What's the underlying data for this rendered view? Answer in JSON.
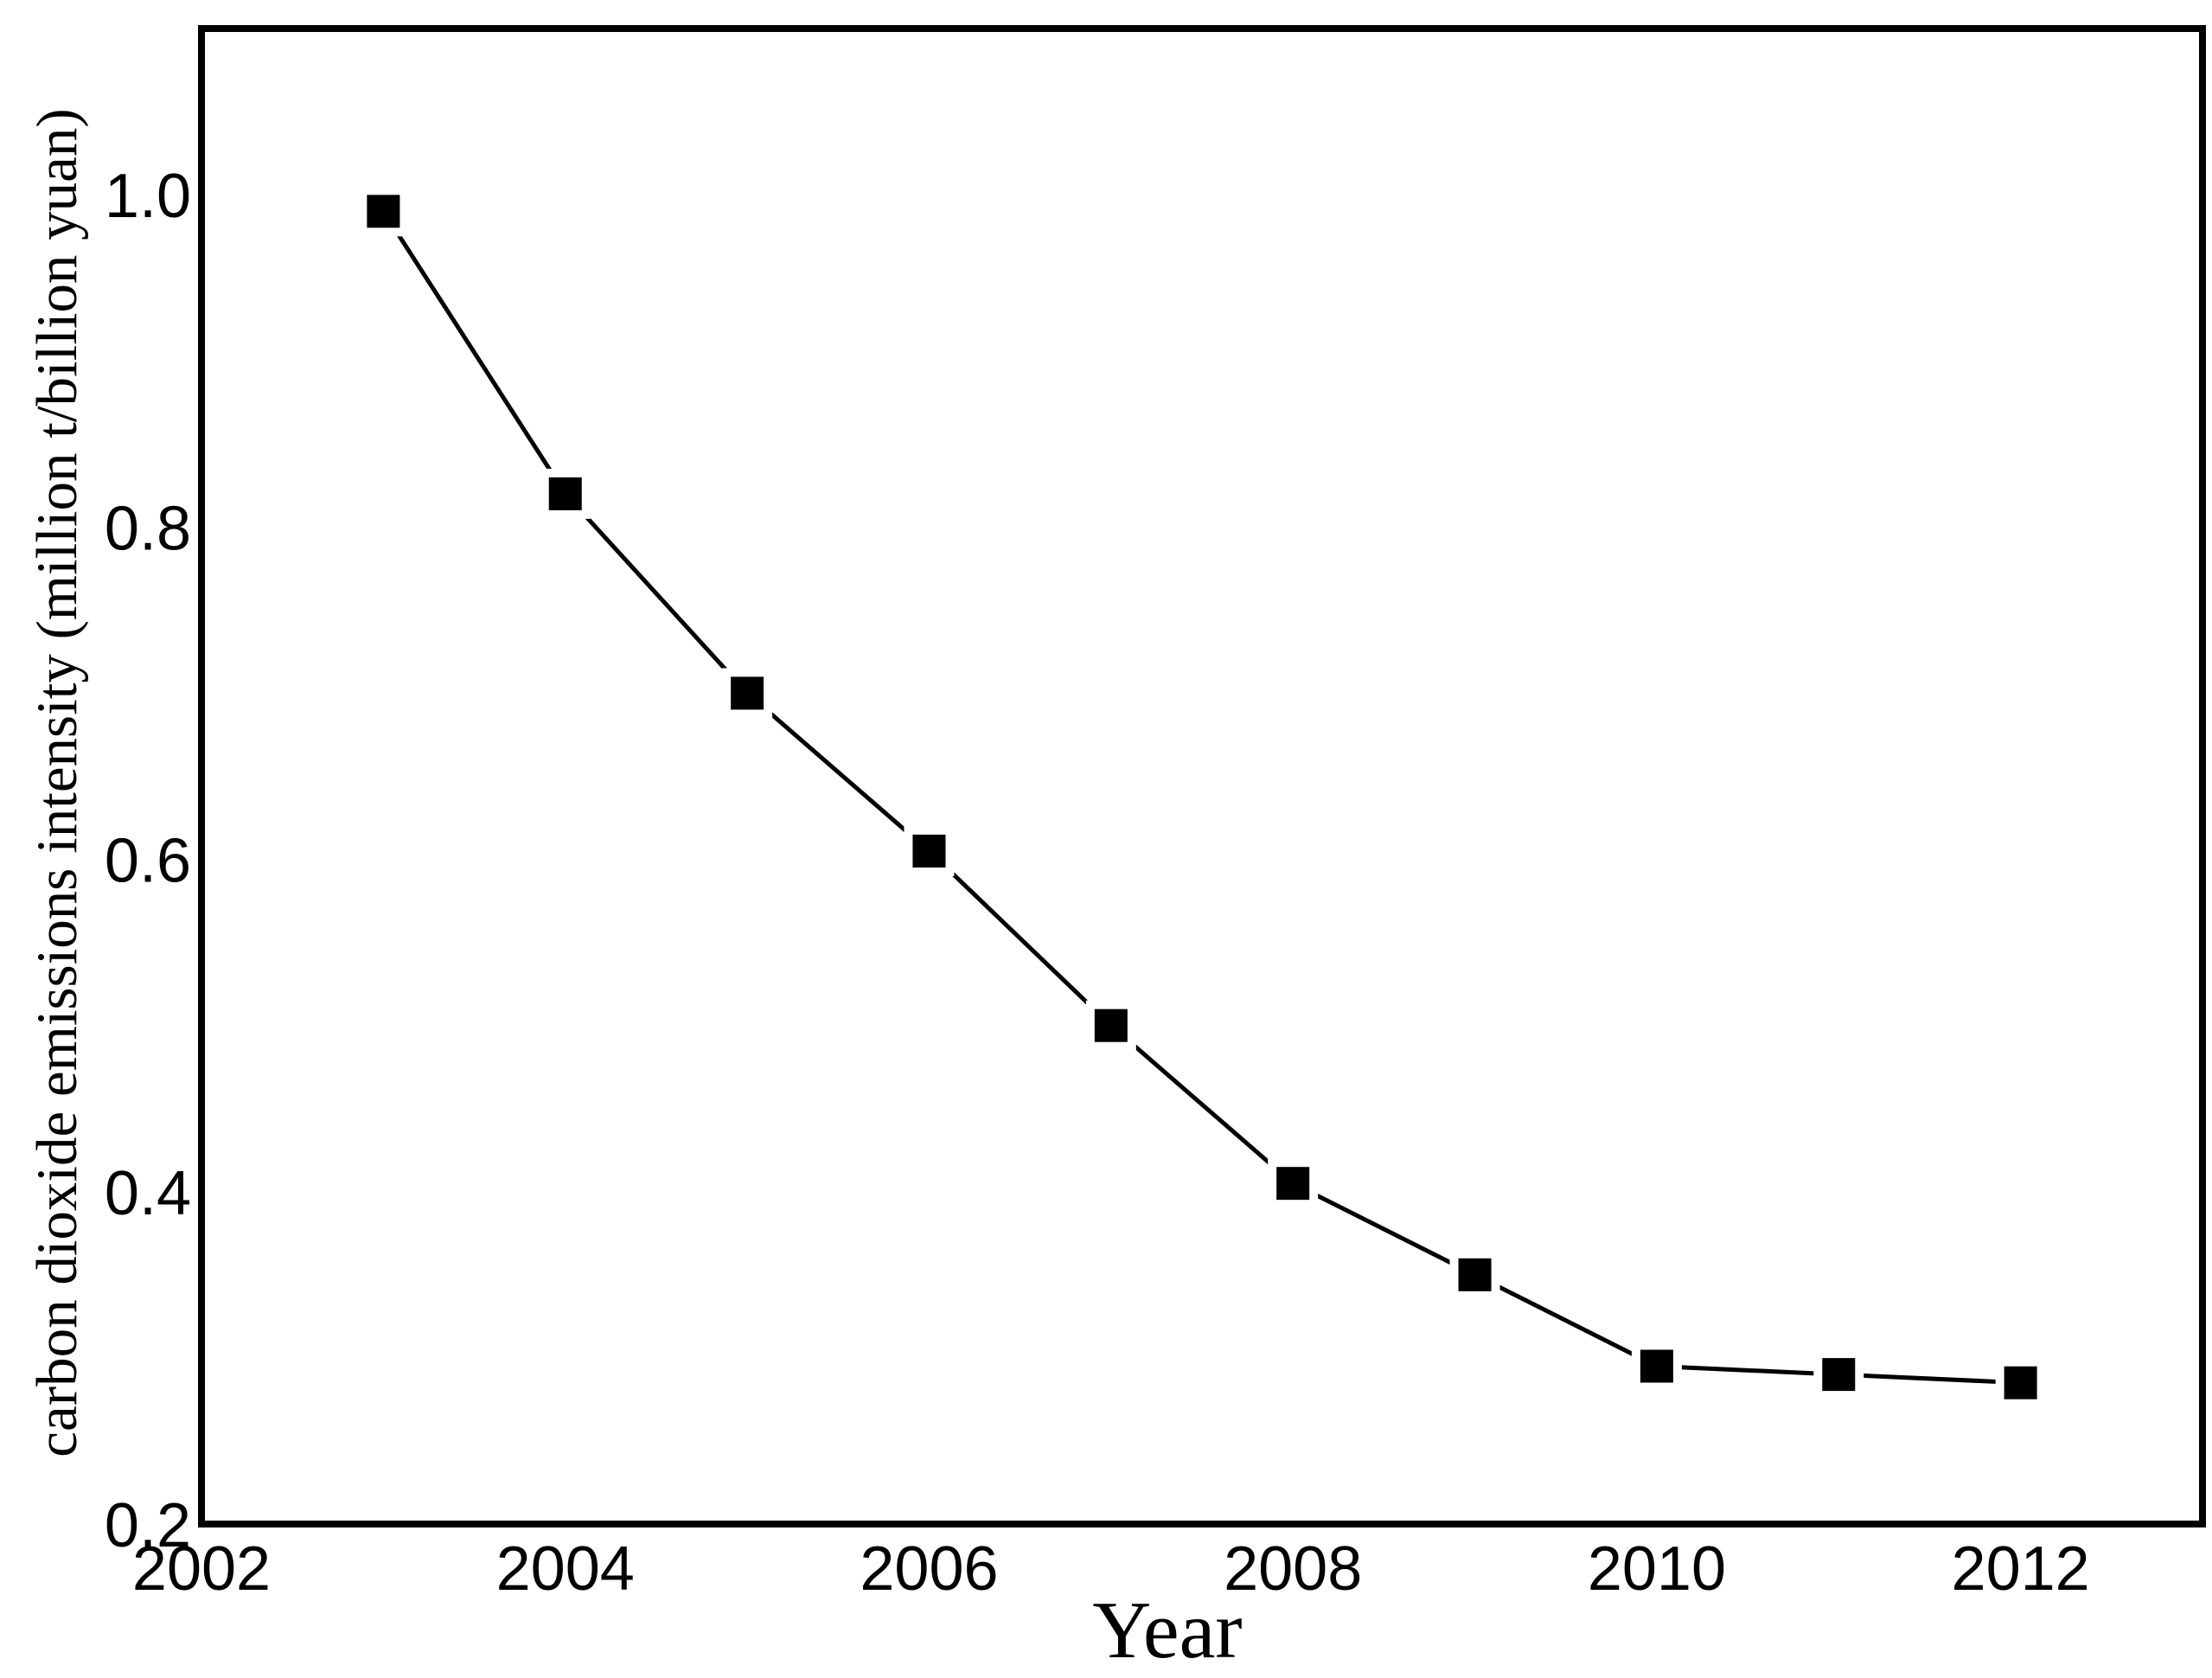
{
  "chart_data": {
    "type": "line",
    "title": "",
    "xlabel": "Year",
    "ylabel": "carbon dioxide emissions intensity (million t/billion yuan)",
    "series": [
      {
        "name": "carbon dioxide emissions intensity",
        "x": [
          2003,
          2004,
          2005,
          2006,
          2007,
          2008,
          2009,
          2010,
          2011,
          2012
        ],
        "y": [
          0.99,
          0.82,
          0.7,
          0.605,
          0.5,
          0.405,
          0.35,
          0.295,
          0.29,
          0.285
        ]
      }
    ],
    "xlim": [
      2002,
      2013
    ],
    "ylim": [
      0.2,
      1.1
    ],
    "x_ticks": [
      "2002",
      "2004",
      "2006",
      "2008",
      "2010",
      "2012"
    ],
    "x_tick_values": [
      2002,
      2004,
      2006,
      2008,
      2010,
      2012
    ],
    "y_ticks": [
      "0.2",
      "0.4",
      "0.6",
      "0.8",
      "1.0"
    ],
    "y_tick_values": [
      0.2,
      0.4,
      0.6,
      0.8,
      1.0
    ],
    "grid": false,
    "legend": "none",
    "marker": "filled-square",
    "colors": {
      "line": "#000000",
      "marker": "#000000",
      "frame": "#000000",
      "text": "#000000",
      "background": "#ffffff"
    }
  }
}
